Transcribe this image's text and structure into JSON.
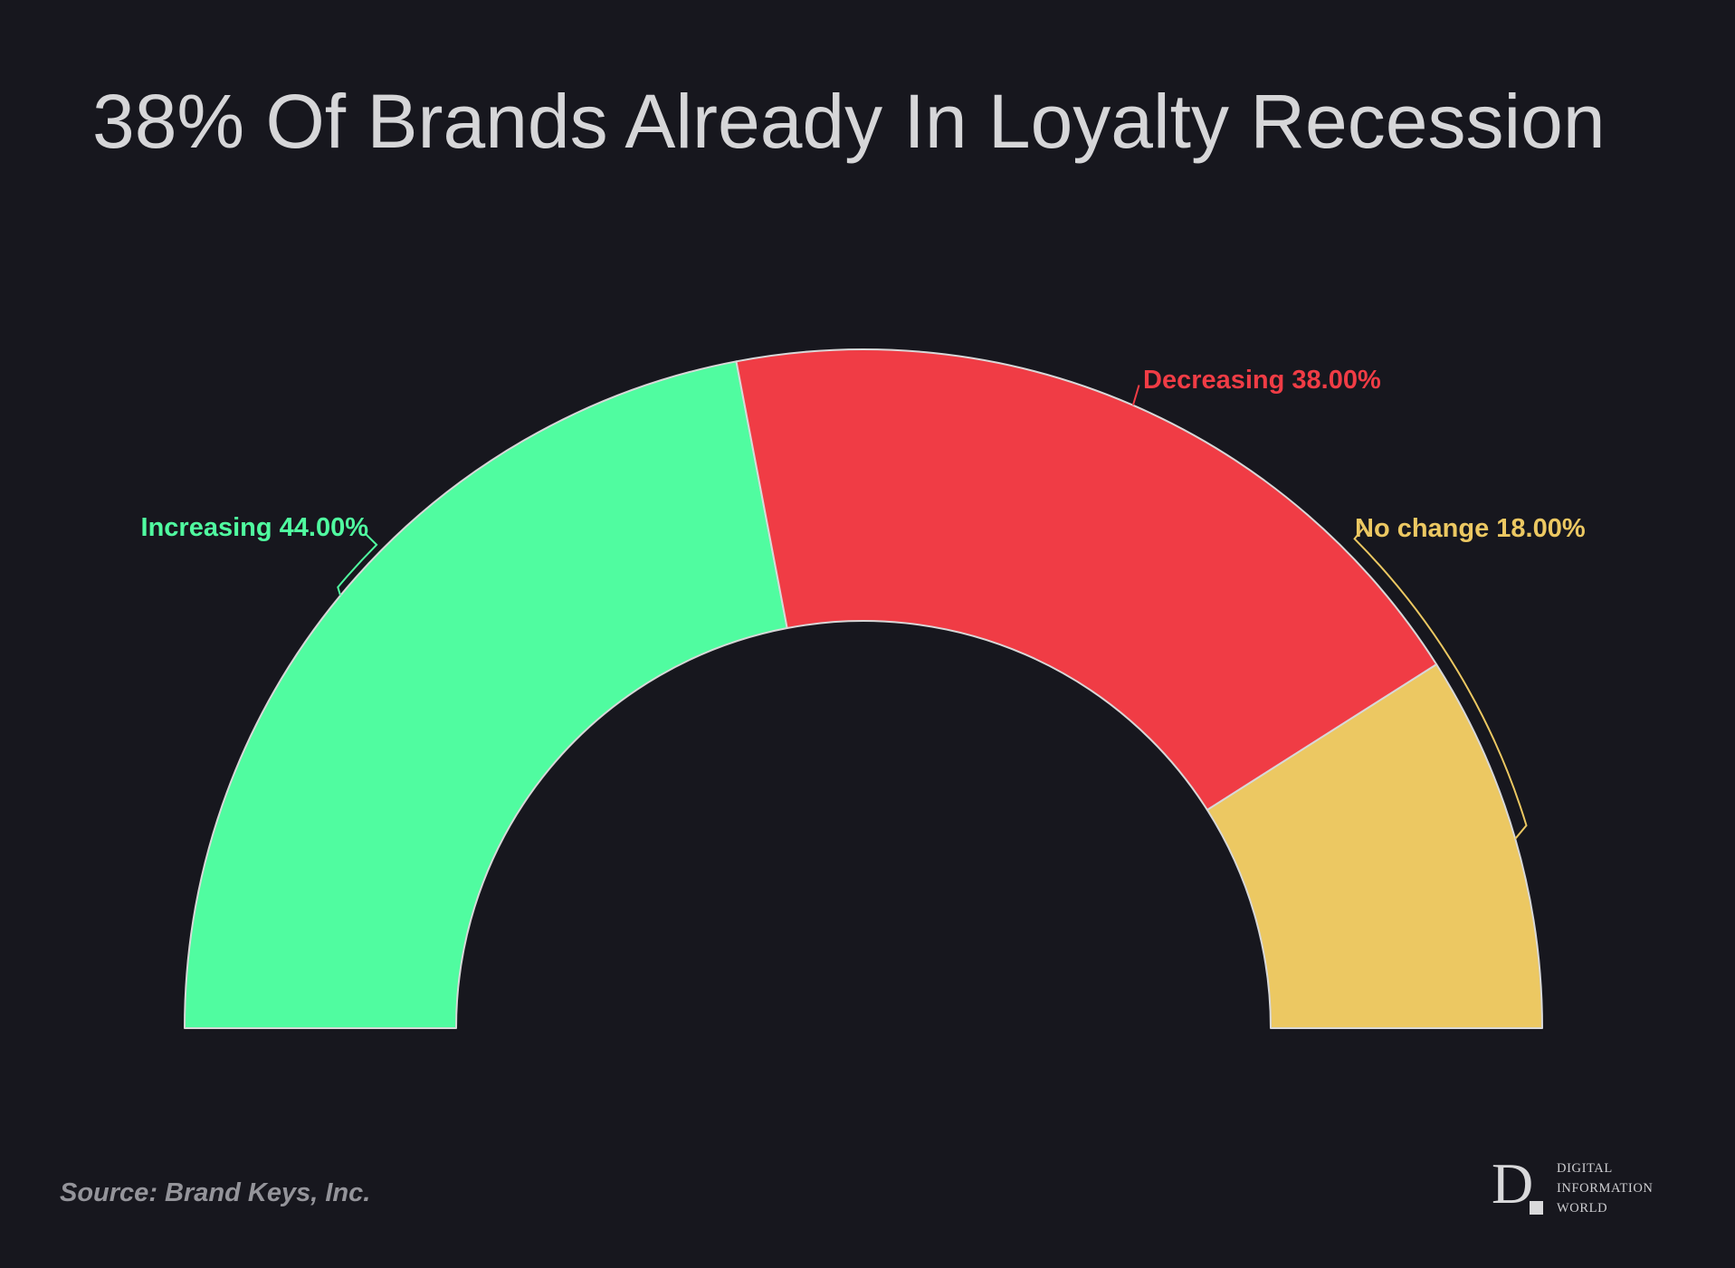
{
  "title": "38% Of Brands Already In Loyalty Recession",
  "source_note": "Source: Brand Keys, Inc.",
  "logo": {
    "letter": "D",
    "lines": [
      "DIGITAL",
      "INFORMATION",
      "WORLD"
    ]
  },
  "colors": {
    "background": "#17171e",
    "title": "#d6d6d8",
    "source": "#94949a",
    "logo": "#cfcfd2",
    "slice_stroke": "#d8d8d8",
    "increasing": "#50fca0",
    "decreasing": "#f03c45",
    "no_change": "#ecc862"
  },
  "chart_data": {
    "type": "pie",
    "subtype": "half-donut-gauge",
    "title": "38% Of Brands Already In Loyalty Recession",
    "categories": [
      "Increasing",
      "Decreasing",
      "No change"
    ],
    "values": [
      44.0,
      38.0,
      18.0
    ],
    "unit": "%",
    "total_angle_deg": 180,
    "start_angle_deg": 180,
    "legend": "none",
    "labels_position": "outside-with-leader-lines",
    "slices": [
      {
        "label": "Increasing",
        "value": 44.0,
        "display": "Increasing 44.00%",
        "color": "#50fca0"
      },
      {
        "label": "Decreasing",
        "value": 38.0,
        "display": "Decreasing 38.00%",
        "color": "#f03c45"
      },
      {
        "label": "No change",
        "value": 18.0,
        "display": "No change 18.00%",
        "color": "#ecc862"
      }
    ]
  }
}
